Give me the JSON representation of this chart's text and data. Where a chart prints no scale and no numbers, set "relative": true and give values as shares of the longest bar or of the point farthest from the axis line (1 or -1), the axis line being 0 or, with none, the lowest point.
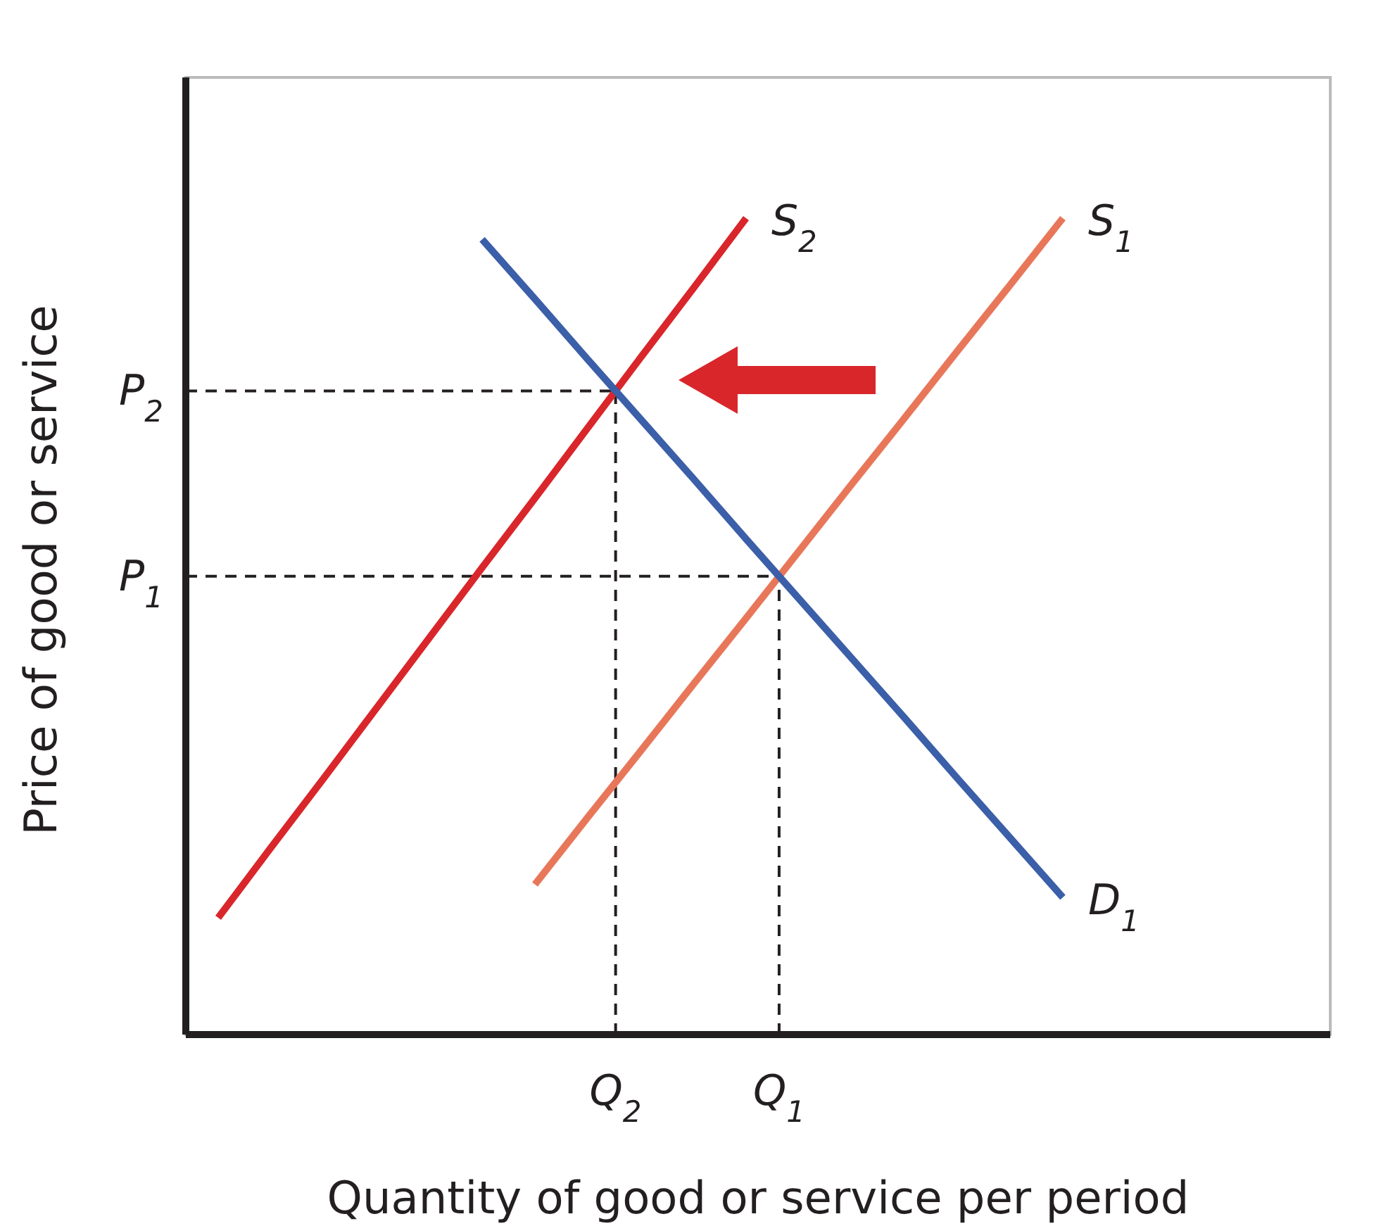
{
  "chart_data": {
    "type": "line",
    "relative": true,
    "xlabel": "Quantity of good or service per period",
    "ylabel": "Price of good or service",
    "annotations": [
      "P$_{2}$",
      "Q$_{2}$",
      "P$_{1}$",
      "Q$_{1}$"
    ],
    "categories": [
      null,
      null,
      null,
      null,
      null,
      null,
      null,
      null,
      null,
      null,
      null,
      null,
      null,
      null,
      null,
      null,
      null
    ],
    "series": [
      {
        "name": "S$_{2}$",
        "color": "#d9262b",
        "values": [
          0.143,
          0.229,
          0.314,
          0.4,
          0.486,
          0.572,
          0.657,
          0.743,
          0.829,
          0.914,
          1,
          null,
          null,
          null,
          null,
          null,
          null
        ]
      },
      {
        "name": "S$_{1}$",
        "color": "#e8775a",
        "values": [
          null,
          null,
          null,
          null,
          null,
          null,
          0.184,
          0.266,
          0.347,
          0.429,
          0.51,
          0.592,
          0.674,
          0.755,
          0.837,
          0.918,
          1
        ]
      },
      {
        "name": "D$_{1}$",
        "color": "#3b5fa8",
        "values": [
          null,
          null,
          null,
          null,
          null,
          0.974,
          0.901,
          0.827,
          0.754,
          0.681,
          0.607,
          0.534,
          0.461,
          0.388,
          0.314,
          0.241,
          0.168
        ]
      }
    ],
    "marker": "none",
    "line_style": "solid"
  }
}
